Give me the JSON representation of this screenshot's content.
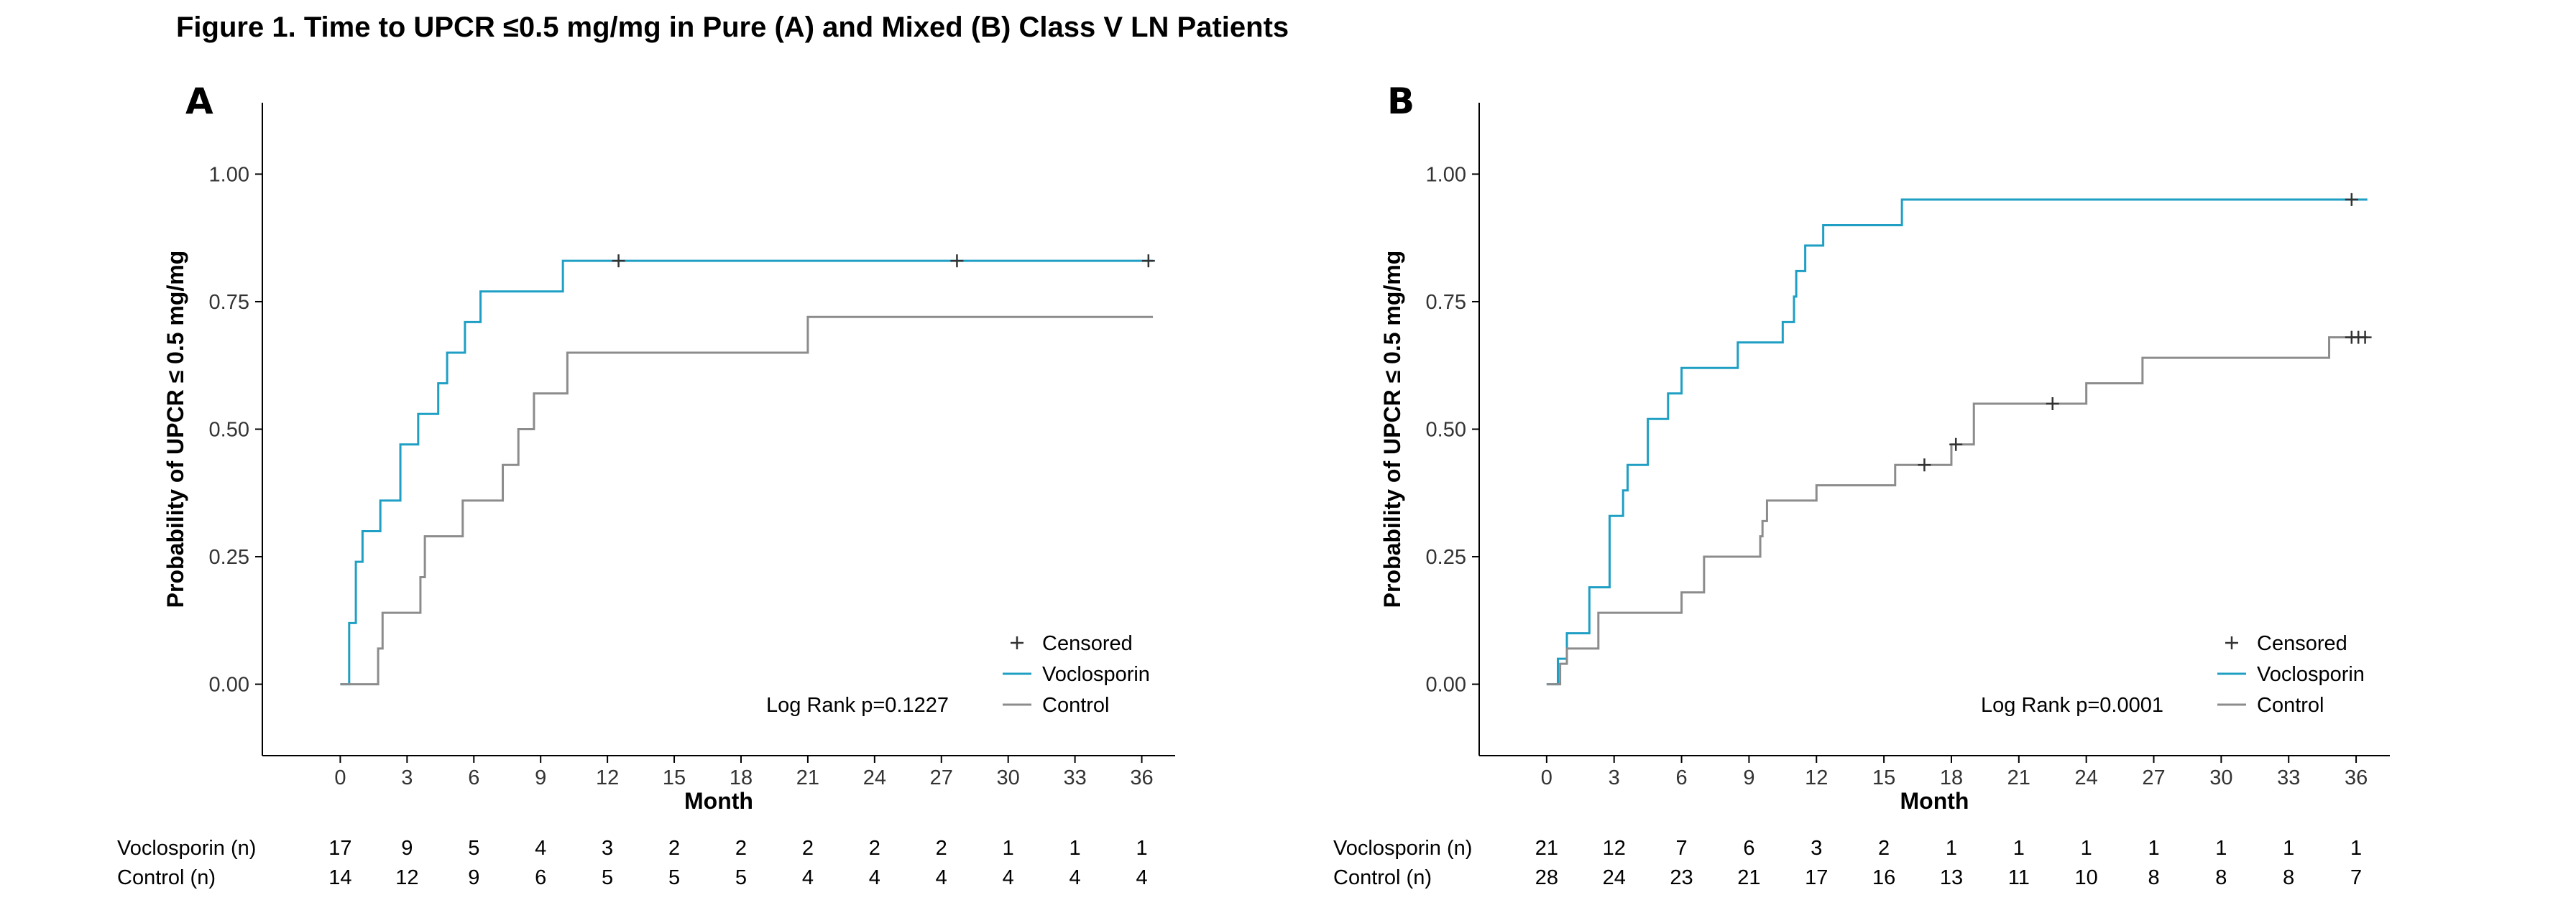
{
  "title": "Figure  1. Time to UPCR ≤0.5 mg/mg in Pure (A) and Mixed (B) Class V LN Patients",
  "colors": {
    "voclosporin": "#1f9fc4",
    "control": "#8c8c8c",
    "censor": "#333333",
    "axis": "#000000"
  },
  "chart_data": [
    {
      "panel": "A",
      "type": "line",
      "subtype": "kaplan-meier step",
      "xlabel": "Month",
      "ylabel": "Probability of UPCR ≤ 0.5 mg/mg",
      "xlim": [
        -3.5,
        37.5
      ],
      "ylim": [
        -0.14,
        1.14
      ],
      "xticks": [
        0,
        3,
        6,
        9,
        12,
        15,
        18,
        21,
        24,
        27,
        30,
        33,
        36
      ],
      "xtick_labels": [
        "0",
        "3",
        "6",
        "9",
        "12",
        "15",
        "18",
        "21",
        "24",
        "27",
        "30",
        "33",
        "36"
      ],
      "yticks": [
        0,
        0.25,
        0.5,
        0.75,
        1.0
      ],
      "ytick_labels": [
        "0.00",
        "0.25",
        "0.50",
        "0.75",
        "1.00"
      ],
      "grid": false,
      "legend": {
        "position": "bottom-right",
        "entries": [
          "Censored",
          "Voclosporin",
          "Control"
        ]
      },
      "annotation": "Log Rank p=0.1227",
      "series": [
        {
          "name": "Voclosporin",
          "color_key": "voclosporin",
          "x": [
            0,
            0.4,
            0.7,
            1.0,
            1.8,
            2.7,
            3.5,
            4.4,
            4.8,
            5.6,
            6.3,
            7.0,
            9.3,
            10.0,
            36.5
          ],
          "y": [
            0,
            0.12,
            0.24,
            0.3,
            0.36,
            0.47,
            0.53,
            0.59,
            0.65,
            0.71,
            0.77,
            0.77,
            0.77,
            0.83,
            0.83
          ],
          "censored": [
            {
              "x": 12.5,
              "y": 0.83
            },
            {
              "x": 27.7,
              "y": 0.83
            },
            {
              "x": 36.3,
              "y": 0.83
            }
          ]
        },
        {
          "name": "Control",
          "color_key": "control",
          "x": [
            0,
            1.5,
            1.7,
            1.9,
            3.5,
            3.6,
            3.8,
            5.5,
            7.3,
            8.0,
            8.7,
            9.3,
            10.2,
            21.0,
            36.5
          ],
          "y": [
            0,
            0,
            0.07,
            0.14,
            0.14,
            0.21,
            0.29,
            0.36,
            0.43,
            0.5,
            0.57,
            0.57,
            0.65,
            0.72,
            0.72
          ],
          "censored": []
        }
      ],
      "risk_table": {
        "times": [
          0,
          3,
          6,
          9,
          12,
          15,
          18,
          21,
          24,
          27,
          30,
          33,
          36
        ],
        "rows": [
          {
            "label": "Voclosporin (n)",
            "values": [
              "17",
              "9",
              "5",
              "4",
              "3",
              "2",
              "2",
              "2",
              "2",
              "2",
              "1",
              "1",
              "1"
            ]
          },
          {
            "label": "Control (n)",
            "values": [
              "14",
              "12",
              "9",
              "6",
              "5",
              "5",
              "5",
              "4",
              "4",
              "4",
              "4",
              "4",
              "4"
            ]
          }
        ]
      }
    },
    {
      "panel": "B",
      "type": "line",
      "subtype": "kaplan-meier step",
      "xlabel": "Month",
      "ylabel": "Probability of UPCR ≤ 0.5 mg/mg",
      "xlim": [
        -3.0,
        37.5
      ],
      "ylim": [
        -0.14,
        1.14
      ],
      "xticks": [
        0,
        3,
        6,
        9,
        12,
        15,
        18,
        21,
        24,
        27,
        30,
        33,
        36
      ],
      "xtick_labels": [
        "0",
        "3",
        "6",
        "9",
        "12",
        "15",
        "18",
        "21",
        "24",
        "27",
        "30",
        "33",
        "36"
      ],
      "yticks": [
        0,
        0.25,
        0.5,
        0.75,
        1.0
      ],
      "ytick_labels": [
        "0.00",
        "0.25",
        "0.50",
        "0.75",
        "1.00"
      ],
      "grid": false,
      "legend": {
        "position": "bottom-right",
        "entries": [
          "Censored",
          "Voclosporin",
          "Control"
        ]
      },
      "annotation": "Log Rank p=0.0001",
      "series": [
        {
          "name": "Voclosporin",
          "color_key": "voclosporin",
          "x": [
            0,
            0.5,
            0.9,
            1.1,
            1.9,
            2.1,
            2.8,
            3.0,
            3.4,
            3.6,
            4.5,
            5.4,
            6.0,
            8.5,
            10.5,
            11.0,
            11.1,
            11.5,
            12.3,
            15.8,
            36.5
          ],
          "y": [
            0,
            0.05,
            0.1,
            0.1,
            0.19,
            0.19,
            0.33,
            0.33,
            0.38,
            0.43,
            0.52,
            0.57,
            0.62,
            0.67,
            0.71,
            0.76,
            0.81,
            0.86,
            0.9,
            0.95,
            0.95
          ],
          "censored": [
            {
              "x": 35.8,
              "y": 0.95
            }
          ]
        },
        {
          "name": "Control",
          "color_key": "control",
          "x": [
            0,
            0.6,
            0.9,
            1.8,
            2.3,
            4.5,
            6.0,
            7.0,
            9.5,
            9.6,
            9.8,
            12.0,
            15.5,
            17.5,
            18.0,
            19.0,
            24.0,
            26.5,
            34.8,
            36.5
          ],
          "y": [
            0,
            0.04,
            0.07,
            0.07,
            0.14,
            0.14,
            0.18,
            0.25,
            0.29,
            0.32,
            0.36,
            0.39,
            0.43,
            0.43,
            0.47,
            0.55,
            0.59,
            0.64,
            0.68,
            0.68
          ],
          "censored": [
            {
              "x": 16.8,
              "y": 0.43
            },
            {
              "x": 18.2,
              "y": 0.47
            },
            {
              "x": 22.5,
              "y": 0.55
            },
            {
              "x": 35.8,
              "y": 0.68
            },
            {
              "x": 36.1,
              "y": 0.68
            },
            {
              "x": 36.4,
              "y": 0.68
            }
          ]
        }
      ],
      "risk_table": {
        "times": [
          0,
          3,
          6,
          9,
          12,
          15,
          18,
          21,
          24,
          27,
          30,
          33,
          36
        ],
        "rows": [
          {
            "label": "Voclosporin (n)",
            "values": [
              "21",
              "12",
              "7",
              "6",
              "3",
              "2",
              "1",
              "1",
              "1",
              "1",
              "1",
              "1",
              "1"
            ]
          },
          {
            "label": "Control (n)",
            "values": [
              "28",
              "24",
              "23",
              "21",
              "17",
              "16",
              "13",
              "11",
              "10",
              "8",
              "8",
              "8",
              "7"
            ]
          }
        ]
      }
    }
  ]
}
